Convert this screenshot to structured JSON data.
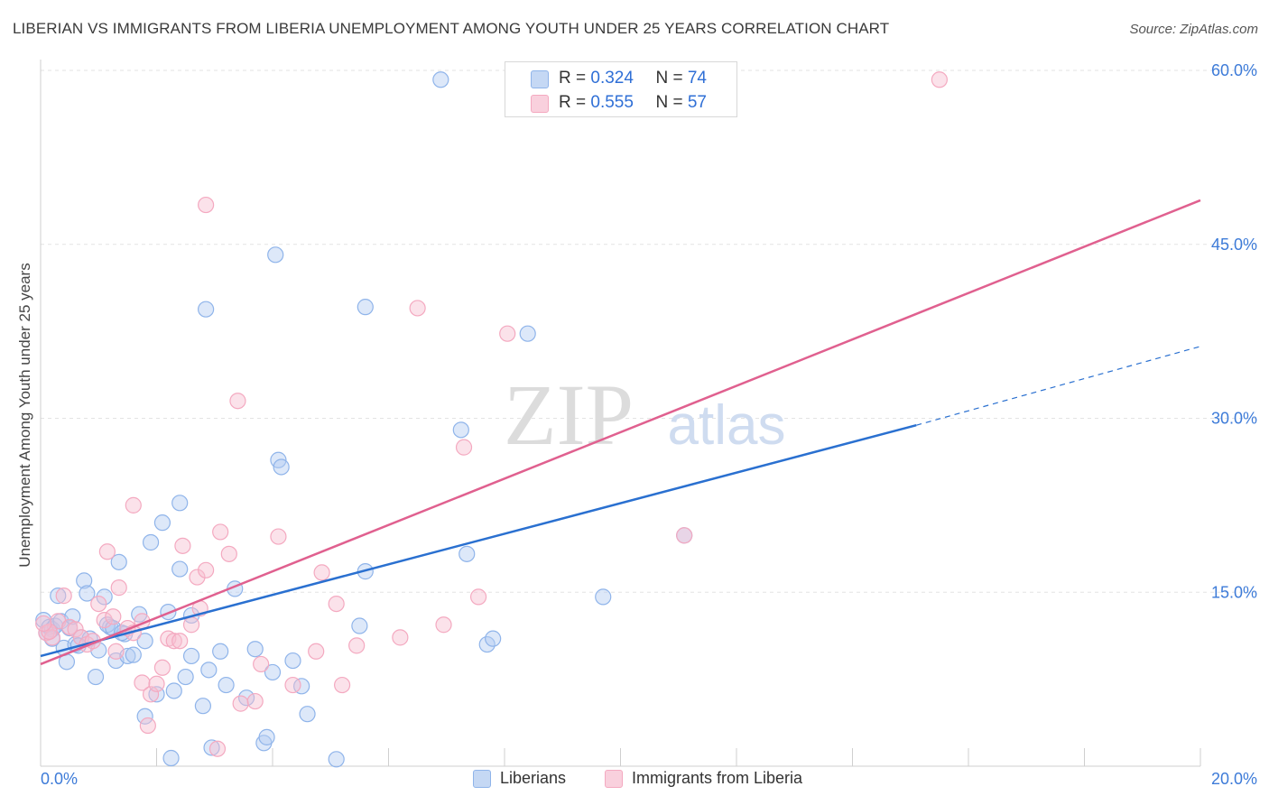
{
  "header": {
    "title": "LIBERIAN VS IMMIGRANTS FROM LIBERIA UNEMPLOYMENT AMONG YOUTH UNDER 25 YEARS CORRELATION CHART",
    "source": "Source: ZipAtlas.com"
  },
  "watermark": {
    "zip": "ZIP",
    "atlas": "atlas"
  },
  "legend_top": {
    "rows": [
      {
        "r_label": "R = ",
        "r_value": "0.324",
        "n_label": "N = ",
        "n_value": "74"
      },
      {
        "r_label": "R = ",
        "r_value": "0.555",
        "n_label": "N = ",
        "n_value": "57"
      }
    ]
  },
  "chart_data": {
    "type": "scatter",
    "title": "LIBERIAN VS IMMIGRANTS FROM LIBERIA UNEMPLOYMENT AMONG YOUTH UNDER 25 YEARS CORRELATION CHART",
    "xlabel": "",
    "ylabel": "Unemployment Among Youth under 25 years",
    "xlim": [
      0,
      20
    ],
    "ylim": [
      0,
      60
    ],
    "x_ticks": [
      "0.0%",
      "20.0%"
    ],
    "y_ticks": [
      {
        "value": 15,
        "label": "15.0%"
      },
      {
        "value": 30,
        "label": "30.0%"
      },
      {
        "value": 45,
        "label": "45.0%"
      },
      {
        "value": 60,
        "label": "60.0%"
      }
    ],
    "grid": true,
    "legend_position": "bottom",
    "series": [
      {
        "name": "Liberians",
        "color": "#8fb4ea",
        "line_color": "#2a70d0",
        "trend": {
          "x0": 0,
          "y0": 9.5,
          "x1": 15.1,
          "y1": 29.4,
          "dashed_to_x": 20,
          "dashed_to_y": 36.2
        },
        "points": [
          [
            0.05,
            12.6
          ],
          [
            0.1,
            11.5
          ],
          [
            0.15,
            12.0
          ],
          [
            0.2,
            11.8
          ],
          [
            0.25,
            12.1
          ],
          [
            0.3,
            14.7
          ],
          [
            0.35,
            12.5
          ],
          [
            0.4,
            10.2
          ],
          [
            0.45,
            9.0
          ],
          [
            0.5,
            11.9
          ],
          [
            0.55,
            12.9
          ],
          [
            0.6,
            10.5
          ],
          [
            0.7,
            11.1
          ],
          [
            0.75,
            16.0
          ],
          [
            0.8,
            14.9
          ],
          [
            0.85,
            11.0
          ],
          [
            0.95,
            7.7
          ],
          [
            1.0,
            10.0
          ],
          [
            1.1,
            14.6
          ],
          [
            1.2,
            12.0
          ],
          [
            1.3,
            9.1
          ],
          [
            1.35,
            17.6
          ],
          [
            1.45,
            11.4
          ],
          [
            1.5,
            9.5
          ],
          [
            1.6,
            9.6
          ],
          [
            1.7,
            13.1
          ],
          [
            1.8,
            10.8
          ],
          [
            1.8,
            4.3
          ],
          [
            1.9,
            19.3
          ],
          [
            2.0,
            6.2
          ],
          [
            2.1,
            21.0
          ],
          [
            2.2,
            13.3
          ],
          [
            2.25,
            0.7
          ],
          [
            2.3,
            6.5
          ],
          [
            2.4,
            22.7
          ],
          [
            2.4,
            17.0
          ],
          [
            2.5,
            7.7
          ],
          [
            2.6,
            9.5
          ],
          [
            2.8,
            5.2
          ],
          [
            2.85,
            39.4
          ],
          [
            2.9,
            8.3
          ],
          [
            2.95,
            1.6
          ],
          [
            3.1,
            9.9
          ],
          [
            3.2,
            7.0
          ],
          [
            3.35,
            15.3
          ],
          [
            3.55,
            5.9
          ],
          [
            3.7,
            10.1
          ],
          [
            3.85,
            2.0
          ],
          [
            3.9,
            2.5
          ],
          [
            4.0,
            8.1
          ],
          [
            4.05,
            44.1
          ],
          [
            4.1,
            26.4
          ],
          [
            4.15,
            25.8
          ],
          [
            4.35,
            9.1
          ],
          [
            4.5,
            6.9
          ],
          [
            4.6,
            4.5
          ],
          [
            5.1,
            0.6
          ],
          [
            5.5,
            12.1
          ],
          [
            5.6,
            16.8
          ],
          [
            5.6,
            39.6
          ],
          [
            6.9,
            59.2
          ],
          [
            7.25,
            29.0
          ],
          [
            7.35,
            18.3
          ],
          [
            7.7,
            10.5
          ],
          [
            7.8,
            11.0
          ],
          [
            8.4,
            37.3
          ],
          [
            9.7,
            14.6
          ],
          [
            11.1,
            19.9
          ],
          [
            1.15,
            12.2
          ],
          [
            0.65,
            10.4
          ],
          [
            1.25,
            11.9
          ],
          [
            2.6,
            13.0
          ],
          [
            0.2,
            11.0
          ],
          [
            1.4,
            11.5
          ]
        ]
      },
      {
        "name": "Immigrants from Liberia",
        "color": "#f4a9c0",
        "line_color": "#e0608f",
        "trend": {
          "x0": 0,
          "y0": 8.8,
          "x1": 20,
          "y1": 48.8
        },
        "points": [
          [
            0.1,
            11.5
          ],
          [
            0.2,
            11.1
          ],
          [
            0.3,
            12.5
          ],
          [
            0.4,
            14.7
          ],
          [
            0.5,
            12.0
          ],
          [
            0.6,
            11.8
          ],
          [
            0.7,
            11.1
          ],
          [
            0.8,
            10.5
          ],
          [
            0.9,
            10.8
          ],
          [
            1.0,
            14.0
          ],
          [
            1.1,
            12.6
          ],
          [
            1.15,
            18.5
          ],
          [
            1.25,
            12.9
          ],
          [
            1.3,
            9.9
          ],
          [
            1.35,
            15.4
          ],
          [
            1.5,
            11.9
          ],
          [
            1.6,
            11.5
          ],
          [
            1.6,
            22.5
          ],
          [
            1.75,
            12.5
          ],
          [
            1.75,
            7.2
          ],
          [
            1.85,
            3.5
          ],
          [
            1.9,
            6.2
          ],
          [
            2.0,
            7.1
          ],
          [
            2.1,
            8.5
          ],
          [
            2.2,
            11.0
          ],
          [
            2.3,
            10.8
          ],
          [
            2.4,
            10.8
          ],
          [
            2.45,
            19.0
          ],
          [
            2.6,
            12.2
          ],
          [
            2.7,
            16.3
          ],
          [
            2.75,
            13.6
          ],
          [
            2.85,
            16.9
          ],
          [
            2.85,
            48.4
          ],
          [
            3.05,
            1.5
          ],
          [
            3.1,
            20.2
          ],
          [
            3.25,
            18.3
          ],
          [
            3.4,
            31.5
          ],
          [
            3.45,
            5.4
          ],
          [
            3.7,
            5.6
          ],
          [
            3.8,
            8.8
          ],
          [
            4.1,
            19.8
          ],
          [
            4.35,
            7.0
          ],
          [
            4.75,
            9.9
          ],
          [
            4.85,
            16.7
          ],
          [
            5.1,
            14.0
          ],
          [
            5.2,
            7.0
          ],
          [
            5.45,
            10.4
          ],
          [
            6.2,
            11.1
          ],
          [
            6.5,
            39.5
          ],
          [
            6.95,
            12.2
          ],
          [
            7.3,
            27.5
          ],
          [
            7.55,
            14.6
          ],
          [
            8.05,
            37.3
          ],
          [
            11.1,
            19.9
          ],
          [
            15.5,
            59.2
          ],
          [
            0.15,
            11.6
          ],
          [
            0.05,
            12.3
          ]
        ]
      }
    ]
  }
}
